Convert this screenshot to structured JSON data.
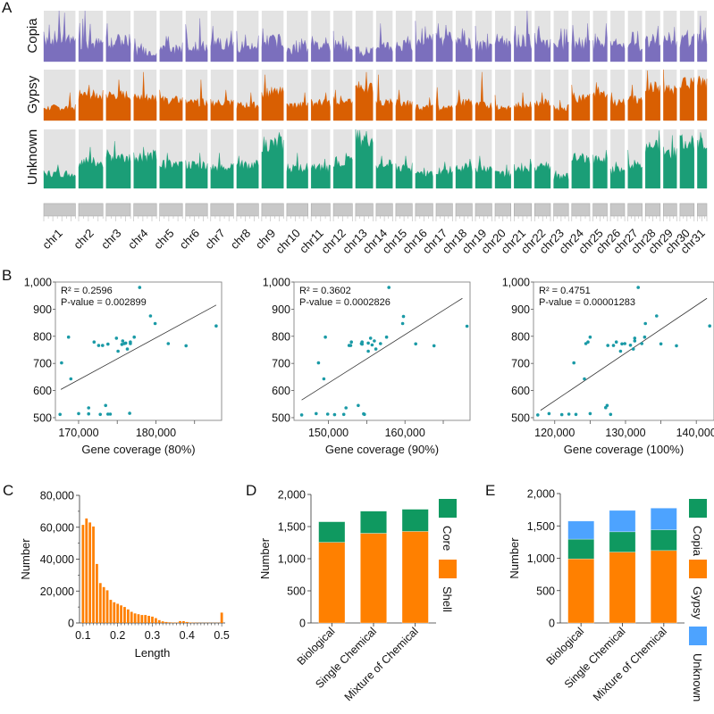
{
  "colors": {
    "copia_track": "#7b6fbd",
    "gypsy_track": "#d95f02",
    "unknown_track": "#1b9e77",
    "track_bg": "#e3e3e3",
    "ideogram": "#c8c8c8",
    "scatter_point": "#1a9aa6",
    "fit_line": "#333333",
    "hist_bar": "#ff8000",
    "shell": "#ff8000",
    "core": "#0f9960",
    "copia_bar": "#0f9960",
    "gypsy_bar": "#ff8000",
    "unknown_bar": "#4da3ff"
  },
  "panels": {
    "A": {
      "letter": "A"
    },
    "B": {
      "letter": "B"
    },
    "C": {
      "letter": "C"
    },
    "D": {
      "letter": "D"
    },
    "E": {
      "letter": "E"
    }
  },
  "chart_data": [
    {
      "panel": "A",
      "type": "area",
      "title": "",
      "rows": [
        "Copia",
        "Gypsy",
        "Unknown"
      ],
      "categories": [
        "chr1",
        "chr2",
        "chr3",
        "chr4",
        "chr5",
        "chr6",
        "chr7",
        "chr8",
        "chr9",
        "chr10",
        "chr11",
        "chr12",
        "chr13",
        "chr14",
        "chr15",
        "chr16",
        "chr17",
        "chr18",
        "chr19",
        "chr20",
        "chr21",
        "chr22",
        "chr23",
        "chr24",
        "chr25",
        "chr26",
        "chr27",
        "chr28",
        "chr29",
        "chr30",
        "chr31"
      ],
      "relative_length": [
        1.0,
        0.77,
        0.77,
        0.72,
        0.72,
        0.69,
        0.72,
        0.69,
        0.69,
        0.67,
        0.6,
        0.6,
        0.55,
        0.52,
        0.52,
        0.55,
        0.52,
        0.52,
        0.52,
        0.5,
        0.55,
        0.5,
        0.47,
        0.57,
        0.45,
        0.45,
        0.45,
        0.47,
        0.42,
        0.45,
        0.3
      ],
      "series": [
        {
          "name": "Copia",
          "mean_level": [
            0.45,
            0.35,
            0.4,
            0.2,
            0.25,
            0.3,
            0.35,
            0.3,
            0.4,
            0.25,
            0.3,
            0.3,
            0.2,
            0.3,
            0.3,
            0.4,
            0.4,
            0.35,
            0.3,
            0.4,
            0.4,
            0.35,
            0.3,
            0.35,
            0.35,
            0.3,
            0.3,
            0.4,
            0.4,
            0.4,
            0.4
          ],
          "peak_level": [
            1.0,
            1.0,
            0.75,
            0.45,
            0.5,
            0.85,
            0.7,
            0.6,
            0.65,
            0.45,
            0.5,
            0.6,
            0.3,
            0.75,
            0.5,
            0.8,
            0.75,
            0.65,
            0.7,
            0.45,
            1.0,
            0.7,
            0.65,
            0.75,
            0.75,
            0.45,
            0.6,
            0.7,
            0.68,
            0.62,
            0.9
          ]
        },
        {
          "name": "Gypsy",
          "mean_level": [
            0.25,
            0.5,
            0.5,
            0.45,
            0.4,
            0.35,
            0.35,
            0.3,
            0.55,
            0.3,
            0.35,
            0.4,
            0.65,
            0.35,
            0.35,
            0.25,
            0.25,
            0.35,
            0.3,
            0.25,
            0.3,
            0.35,
            0.25,
            0.45,
            0.55,
            0.35,
            0.4,
            0.65,
            0.6,
            0.75,
            0.75
          ],
          "peak_level": [
            0.55,
            0.7,
            0.8,
            0.95,
            0.6,
            0.8,
            0.6,
            0.55,
            0.9,
            0.55,
            0.55,
            0.6,
            0.95,
            0.9,
            0.6,
            0.45,
            0.65,
            0.6,
            0.95,
            0.5,
            0.55,
            0.55,
            0.4,
            0.7,
            0.75,
            0.55,
            0.7,
            0.98,
            1.0,
            0.85,
            0.85
          ]
        },
        {
          "name": "Unknown",
          "mean_level": [
            0.25,
            0.45,
            0.55,
            0.55,
            0.4,
            0.4,
            0.35,
            0.4,
            0.75,
            0.35,
            0.35,
            0.45,
            0.85,
            0.4,
            0.35,
            0.25,
            0.3,
            0.35,
            0.35,
            0.25,
            0.35,
            0.35,
            0.2,
            0.5,
            0.5,
            0.3,
            0.4,
            0.7,
            0.6,
            0.8,
            0.8
          ],
          "peak_level": [
            0.4,
            0.7,
            0.8,
            0.7,
            0.6,
            0.6,
            0.6,
            0.55,
            0.95,
            0.6,
            0.5,
            0.6,
            1.0,
            0.55,
            0.55,
            0.35,
            0.45,
            0.5,
            0.55,
            0.4,
            0.5,
            0.45,
            0.3,
            0.6,
            0.65,
            0.45,
            0.65,
            0.98,
            0.9,
            0.9,
            0.95
          ]
        }
      ]
    },
    {
      "panel": "B1",
      "type": "scatter",
      "xlabel": "Gene coverage (80%)",
      "ylabel": "",
      "xlim": [
        167000,
        188500
      ],
      "ylim": [
        490,
        1000
      ],
      "xticks": [
        170000,
        175000,
        180000,
        185000
      ],
      "xtick_labels": [
        "170,000",
        "",
        "180,000",
        ""
      ],
      "yticks": [
        500,
        600,
        700,
        800,
        900,
        1000
      ],
      "ytick_labels": [
        "500",
        "600",
        "700",
        "800",
        "900",
        "1,000"
      ],
      "annotation": [
        "R² = 0.2596",
        "P-value = 0.002899"
      ],
      "fit": {
        "x": [
          167700,
          187800
        ],
        "y": [
          604,
          915
        ]
      },
      "points": [
        [
          177900,
          980
        ],
        [
          179300,
          875
        ],
        [
          179900,
          847
        ],
        [
          181600,
          773
        ],
        [
          183900,
          765
        ],
        [
          187800,
          838
        ],
        [
          168700,
          797
        ],
        [
          167800,
          702
        ],
        [
          169000,
          643
        ],
        [
          172000,
          779
        ],
        [
          172600,
          766
        ],
        [
          173100,
          766
        ],
        [
          173800,
          771
        ],
        [
          174900,
          793
        ],
        [
          175100,
          745
        ],
        [
          175600,
          770
        ],
        [
          175700,
          783
        ],
        [
          175900,
          773
        ],
        [
          176100,
          775
        ],
        [
          176300,
          753
        ],
        [
          176700,
          773
        ],
        [
          176700,
          779
        ],
        [
          177200,
          797
        ],
        [
          167600,
          512
        ],
        [
          170000,
          515
        ],
        [
          171300,
          514
        ],
        [
          171300,
          536
        ],
        [
          172800,
          512
        ],
        [
          173500,
          545
        ],
        [
          173800,
          513
        ],
        [
          174100,
          513
        ],
        [
          176600,
          516
        ]
      ]
    },
    {
      "panel": "B2",
      "type": "scatter",
      "xlabel": "Gene coverage (90%)",
      "ylabel": "",
      "xlim": [
        145500,
        168500
      ],
      "ylim": [
        490,
        1000
      ],
      "xticks": [
        150000,
        155000,
        160000,
        165000
      ],
      "xtick_labels": [
        "150,000",
        "",
        "160,000",
        ""
      ],
      "yticks": [
        500,
        600,
        700,
        800,
        900,
        1000
      ],
      "ytick_labels": [
        "500",
        "600",
        "700",
        "800",
        "900",
        "1,000"
      ],
      "annotation": [
        "R² = 0.3602",
        "P-value = 0.0002826"
      ],
      "fit": {
        "x": [
          146500,
          167500
        ],
        "y": [
          565,
          940
        ]
      },
      "points": [
        [
          157900,
          980
        ],
        [
          159800,
          873
        ],
        [
          159700,
          847
        ],
        [
          161400,
          772
        ],
        [
          163800,
          765
        ],
        [
          168100,
          837
        ],
        [
          149600,
          797
        ],
        [
          148700,
          702
        ],
        [
          149400,
          643
        ],
        [
          152700,
          766
        ],
        [
          152900,
          766
        ],
        [
          153000,
          779
        ],
        [
          154300,
          773
        ],
        [
          154400,
          779
        ],
        [
          154400,
          771
        ],
        [
          155500,
          793
        ],
        [
          155200,
          745
        ],
        [
          155200,
          775
        ],
        [
          155700,
          768
        ],
        [
          156000,
          783
        ],
        [
          156200,
          753
        ],
        [
          156800,
          773
        ],
        [
          157600,
          797
        ],
        [
          146500,
          510
        ],
        [
          148400,
          515
        ],
        [
          149900,
          513
        ],
        [
          150800,
          511
        ],
        [
          152000,
          512
        ],
        [
          152300,
          536
        ],
        [
          153900,
          545
        ],
        [
          154600,
          514
        ],
        [
          154700,
          512
        ]
      ]
    },
    {
      "panel": "B3",
      "type": "scatter",
      "xlabel": "Gene coverage (100%)",
      "ylabel": "",
      "xlim": [
        117000,
        142500
      ],
      "ylim": [
        490,
        1000
      ],
      "xticks": [
        120000,
        125000,
        130000,
        135000,
        140000
      ],
      "xtick_labels": [
        "120,000",
        "",
        "130,000",
        "",
        "140,000"
      ],
      "yticks": [
        500,
        600,
        700,
        800,
        900,
        1000
      ],
      "ytick_labels": [
        "500",
        "600",
        "700",
        "800",
        "900",
        "1,000"
      ],
      "annotation": [
        "R² = 0.4751",
        "P-value = 0.00001283"
      ],
      "fit": {
        "x": [
          118000,
          141500
        ],
        "y": [
          527,
          940
        ]
      },
      "points": [
        [
          131800,
          980
        ],
        [
          134400,
          875
        ],
        [
          132800,
          847
        ],
        [
          135000,
          772
        ],
        [
          137200,
          765
        ],
        [
          141900,
          838
        ],
        [
          125000,
          797
        ],
        [
          122700,
          702
        ],
        [
          124200,
          643
        ],
        [
          124400,
          773
        ],
        [
          124700,
          779
        ],
        [
          127500,
          766
        ],
        [
          128300,
          766
        ],
        [
          128700,
          779
        ],
        [
          129500,
          772
        ],
        [
          129900,
          773
        ],
        [
          129300,
          745
        ],
        [
          130700,
          767
        ],
        [
          131100,
          753
        ],
        [
          131300,
          783
        ],
        [
          131300,
          793
        ],
        [
          132300,
          773
        ],
        [
          132700,
          797
        ],
        [
          117600,
          510
        ],
        [
          119200,
          515
        ],
        [
          121000,
          511
        ],
        [
          122000,
          513
        ],
        [
          123000,
          512
        ],
        [
          125000,
          515
        ],
        [
          127200,
          537
        ],
        [
          127400,
          545
        ],
        [
          127900,
          512
        ]
      ]
    },
    {
      "panel": "C",
      "type": "bar",
      "title": "",
      "xlabel": "Length",
      "ylabel": "Number",
      "xlim": [
        0.09,
        0.51
      ],
      "ylim": [
        0,
        80000
      ],
      "xticks": [
        0.1,
        0.2,
        0.3,
        0.4,
        0.5
      ],
      "xtick_labels": [
        "0.1",
        "0.2",
        "0.3",
        "0.4",
        "0.5"
      ],
      "yticks": [
        0,
        20000,
        40000,
        60000,
        80000
      ],
      "ytick_labels": [
        "0",
        "20,000",
        "40,000",
        "60,000",
        "80,000"
      ],
      "x": [
        0.1,
        0.11,
        0.12,
        0.13,
        0.14,
        0.15,
        0.16,
        0.17,
        0.18,
        0.19,
        0.2,
        0.21,
        0.22,
        0.23,
        0.24,
        0.25,
        0.26,
        0.27,
        0.28,
        0.29,
        0.3,
        0.31,
        0.32,
        0.33,
        0.34,
        0.35,
        0.36,
        0.37,
        0.38,
        0.39,
        0.4,
        0.41,
        0.42,
        0.43,
        0.44,
        0.45,
        0.46,
        0.47,
        0.48,
        0.49,
        0.5
      ],
      "values": [
        61500,
        65500,
        63000,
        60500,
        37000,
        25000,
        22500,
        20500,
        14500,
        13000,
        12000,
        11000,
        10000,
        8500,
        7000,
        6000,
        5500,
        5000,
        5000,
        4500,
        4000,
        3000,
        1800,
        1000,
        600,
        400,
        300,
        300,
        1200,
        1100,
        600,
        300,
        200,
        150,
        100,
        100,
        100,
        100,
        100,
        100,
        6500
      ]
    },
    {
      "panel": "D",
      "type": "bar",
      "stacked": true,
      "xlabel": "",
      "ylabel": "Number",
      "ylim": [
        0,
        2000
      ],
      "yticks": [
        0,
        500,
        1000,
        1500,
        2000
      ],
      "ytick_labels": [
        "0",
        "500",
        "1,000",
        "1,500",
        "2,000"
      ],
      "categories": [
        "Biological",
        "Single Chemical",
        "Mixture of Chemical"
      ],
      "series": [
        {
          "name": "Shell",
          "values": [
            1255,
            1395,
            1425
          ]
        },
        {
          "name": "Core",
          "values": [
            320,
            345,
            345
          ]
        }
      ],
      "legend": [
        "Core",
        "Shell"
      ],
      "legend_position": "right"
    },
    {
      "panel": "E",
      "type": "bar",
      "stacked": true,
      "xlabel": "",
      "ylabel": "Number",
      "ylim": [
        0,
        2000
      ],
      "yticks": [
        0,
        500,
        1000,
        1500,
        2000
      ],
      "ytick_labels": [
        "0",
        "500",
        "1,000",
        "1,500",
        "2,000"
      ],
      "categories": [
        "Biological",
        "Single Chemical",
        "Mixture of Chemical"
      ],
      "series": [
        {
          "name": "Gypsy",
          "values": [
            990,
            1095,
            1120
          ]
        },
        {
          "name": "Copia",
          "values": [
            305,
            315,
            320
          ]
        },
        {
          "name": "Unknown",
          "values": [
            280,
            330,
            335
          ]
        }
      ],
      "legend": [
        "Copia",
        "Gypsy",
        "Unknown"
      ],
      "legend_position": "right"
    }
  ]
}
